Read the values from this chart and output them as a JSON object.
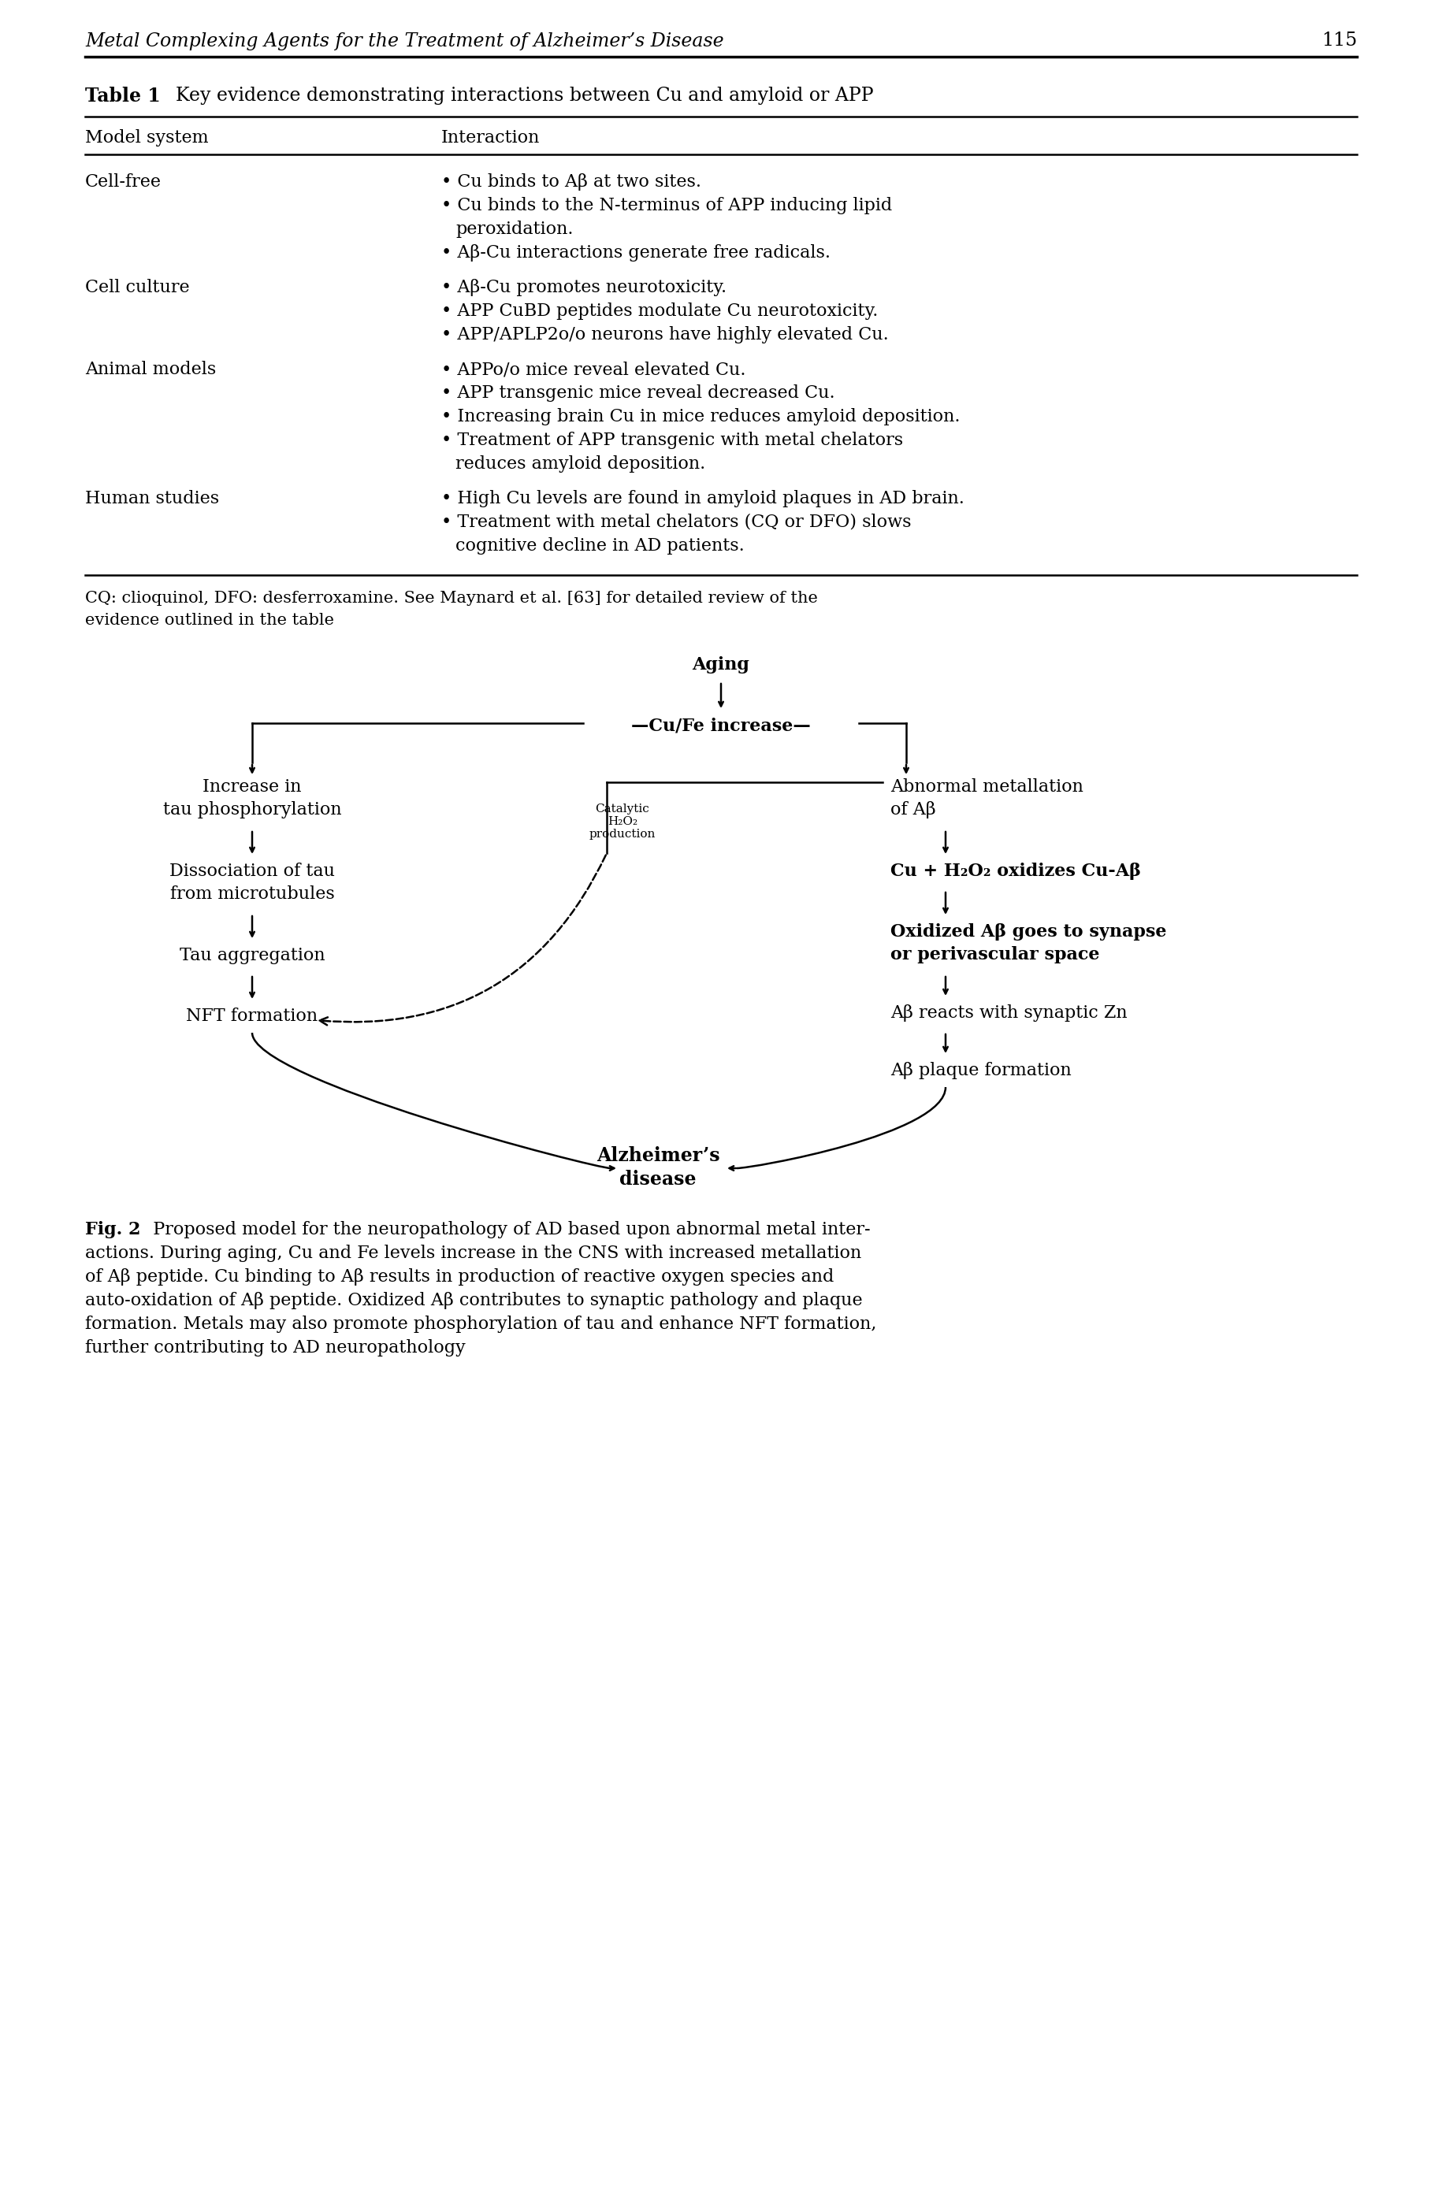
{
  "page_header": "Metal Complexing Agents for the Treatment of Alzheimer’s Disease",
  "page_number": "115",
  "table_title_bold": "Table 1",
  "table_title_rest": "  Key evidence demonstrating interactions between Cu and amyloid or APP",
  "col1_header": "Model system",
  "col2_header": "Interaction",
  "table_rows": [
    {
      "model": "Cell-free",
      "interactions": [
        [
          "Cu binds to Aβ at two sites."
        ],
        [
          "Cu binds to the N-terminus of APP inducing lipid",
          "   peroxidation."
        ],
        [
          "Aβ-Cu interactions generate free radicals."
        ]
      ]
    },
    {
      "model": "Cell culture",
      "interactions": [
        [
          "Aβ-Cu promotes neurotoxicity."
        ],
        [
          "APP CuBD peptides modulate Cu neurotoxicity."
        ],
        [
          "APP/APLP2o/o neurons have highly elevated Cu."
        ]
      ]
    },
    {
      "model": "Animal models",
      "interactions": [
        [
          "APPo/o mice reveal elevated Cu."
        ],
        [
          "APP transgenic mice reveal decreased Cu."
        ],
        [
          "Increasing brain Cu in mice reduces amyloid deposition."
        ],
        [
          "Treatment of APP transgenic with metal chelators",
          "   reduces amyloid deposition."
        ]
      ]
    },
    {
      "model": "Human studies",
      "interactions": [
        [
          "High Cu levels are found in amyloid plaques in AD brain."
        ],
        [
          "Treatment with metal chelators (CQ or DFO) slows",
          "   cognitive decline in AD patients."
        ]
      ]
    }
  ],
  "table_footnote_line1": "CQ: clioquinol, DFO: desferroxamine. See Maynard et al. [63] for detailed review of the",
  "table_footnote_line2": "evidence outlined in the table",
  "fig_caption_bold": "Fig. 2",
  "fig_caption_lines": [
    "  Proposed model for the neuropathology of AD based upon abnormal metal inter-",
    "actions. During aging, Cu and Fe levels increase in the CNS with increased metallation",
    "of Aβ peptide. Cu binding to Aβ results in production of reactive oxygen species and",
    "auto-oxidation of Aβ peptide. Oxidized Aβ contributes to synaptic pathology and plaque",
    "formation. Metals may also promote phosphorylation of tau and enhance NFT formation,",
    "further contributing to AD neuropathology"
  ],
  "bg_color": "#ffffff"
}
